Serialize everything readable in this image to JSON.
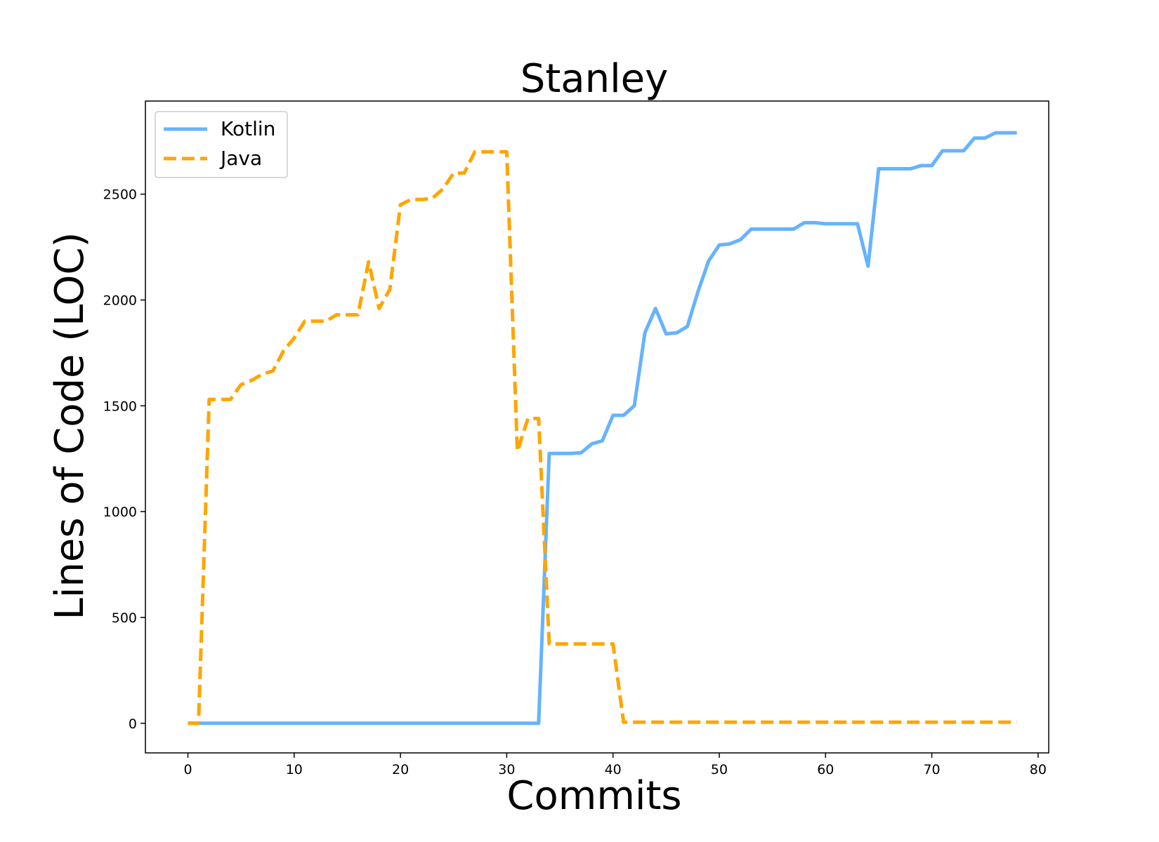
{
  "chart_data": {
    "type": "line",
    "title": "Stanley",
    "xlabel": "Commits",
    "ylabel": "Lines of Code (LOC)",
    "xlim": [
      -4,
      81
    ],
    "ylim": [
      -140,
      2940
    ],
    "xticks": [
      0,
      10,
      20,
      30,
      40,
      50,
      60,
      70,
      80
    ],
    "yticks": [
      0,
      500,
      1000,
      1500,
      2000,
      2500
    ],
    "grid": false,
    "legend_position": "top-left",
    "series": [
      {
        "name": "Kotlin",
        "color": "#66b3ff",
        "style": "solid",
        "x": [
          0,
          1,
          2,
          3,
          4,
          5,
          6,
          7,
          8,
          9,
          10,
          11,
          12,
          13,
          14,
          15,
          16,
          17,
          18,
          19,
          20,
          21,
          22,
          23,
          24,
          25,
          26,
          27,
          28,
          29,
          30,
          31,
          32,
          33,
          34,
          35,
          36,
          37,
          38,
          39,
          40,
          41,
          42,
          43,
          44,
          45,
          46,
          47,
          48,
          49,
          50,
          51,
          52,
          53,
          54,
          55,
          56,
          57,
          58,
          59,
          60,
          61,
          62,
          63,
          64,
          65,
          66,
          67,
          68,
          69,
          70,
          71,
          72,
          73,
          74,
          75,
          76,
          77,
          78
        ],
        "y": [
          0,
          0,
          0,
          0,
          0,
          0,
          0,
          0,
          0,
          0,
          0,
          0,
          0,
          0,
          0,
          0,
          0,
          0,
          0,
          0,
          0,
          0,
          0,
          0,
          0,
          0,
          0,
          0,
          0,
          0,
          0,
          0,
          0,
          0,
          1275,
          1275,
          1275,
          1278,
          1320,
          1335,
          1455,
          1455,
          1500,
          1845,
          1960,
          1840,
          1845,
          1875,
          2040,
          2185,
          2260,
          2265,
          2285,
          2335,
          2335,
          2335,
          2335,
          2335,
          2365,
          2365,
          2360,
          2360,
          2360,
          2360,
          2160,
          2620,
          2620,
          2620,
          2620,
          2635,
          2635,
          2705,
          2705,
          2705,
          2765,
          2765,
          2790,
          2790,
          2790
        ]
      },
      {
        "name": "Java",
        "color": "#ffa500",
        "style": "dashed",
        "x": [
          0,
          1,
          2,
          3,
          4,
          5,
          6,
          7,
          8,
          9,
          10,
          11,
          12,
          13,
          14,
          15,
          16,
          17,
          18,
          19,
          20,
          21,
          22,
          23,
          24,
          25,
          26,
          27,
          28,
          29,
          30,
          31,
          32,
          33,
          34,
          35,
          36,
          37,
          38,
          39,
          40,
          41,
          42,
          43,
          44,
          45,
          46,
          47,
          48,
          49,
          50,
          51,
          52,
          53,
          54,
          55,
          56,
          57,
          58,
          59,
          60,
          61,
          62,
          63,
          64,
          65,
          66,
          67,
          68,
          69,
          70,
          71,
          72,
          73,
          74,
          75,
          76,
          77,
          78
        ],
        "y": [
          0,
          0,
          1530,
          1530,
          1530,
          1600,
          1620,
          1650,
          1665,
          1760,
          1820,
          1900,
          1900,
          1900,
          1930,
          1930,
          1930,
          2180,
          1960,
          2050,
          2450,
          2475,
          2475,
          2480,
          2525,
          2600,
          2600,
          2700,
          2700,
          2700,
          2700,
          1285,
          1440,
          1440,
          375,
          375,
          375,
          375,
          375,
          375,
          375,
          5,
          5,
          5,
          5,
          5,
          5,
          5,
          5,
          5,
          5,
          5,
          5,
          5,
          5,
          5,
          5,
          5,
          5,
          5,
          5,
          5,
          5,
          5,
          5,
          5,
          5,
          5,
          5,
          5,
          5,
          5,
          5,
          5,
          5,
          5,
          5,
          5,
          5
        ]
      }
    ]
  }
}
